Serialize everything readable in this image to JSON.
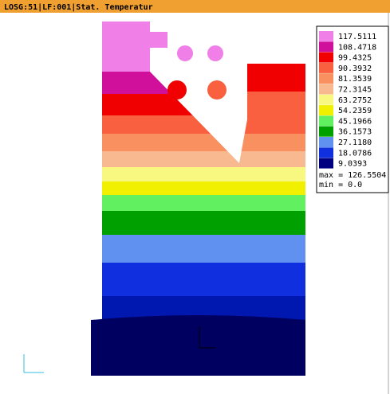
{
  "header": {
    "title": "LOSG:51|LF:001|Stat. Temperatur"
  },
  "legend": {
    "entries": [
      {
        "label": "117.5111",
        "color": "#f080e8"
      },
      {
        "label": "108.4718",
        "color": "#d0109a"
      },
      {
        "label": "99.4325",
        "color": "#f00000"
      },
      {
        "label": "90.3932",
        "color": "#f86040"
      },
      {
        "label": "81.3539",
        "color": "#f89060"
      },
      {
        "label": "72.3145",
        "color": "#f8b890"
      },
      {
        "label": "63.2752",
        "color": "#f8f880"
      },
      {
        "label": "54.2359",
        "color": "#f0f000"
      },
      {
        "label": "45.1966",
        "color": "#60f060"
      },
      {
        "label": "36.1573",
        "color": "#00a000"
      },
      {
        "label": "27.1180",
        "color": "#6090f0"
      },
      {
        "label": "18.0786",
        "color": "#1030e0"
      },
      {
        "label": "9.0393",
        "color": "#000080"
      }
    ],
    "max": "max = 126.5504",
    "min": "min = 0.0"
  }
}
